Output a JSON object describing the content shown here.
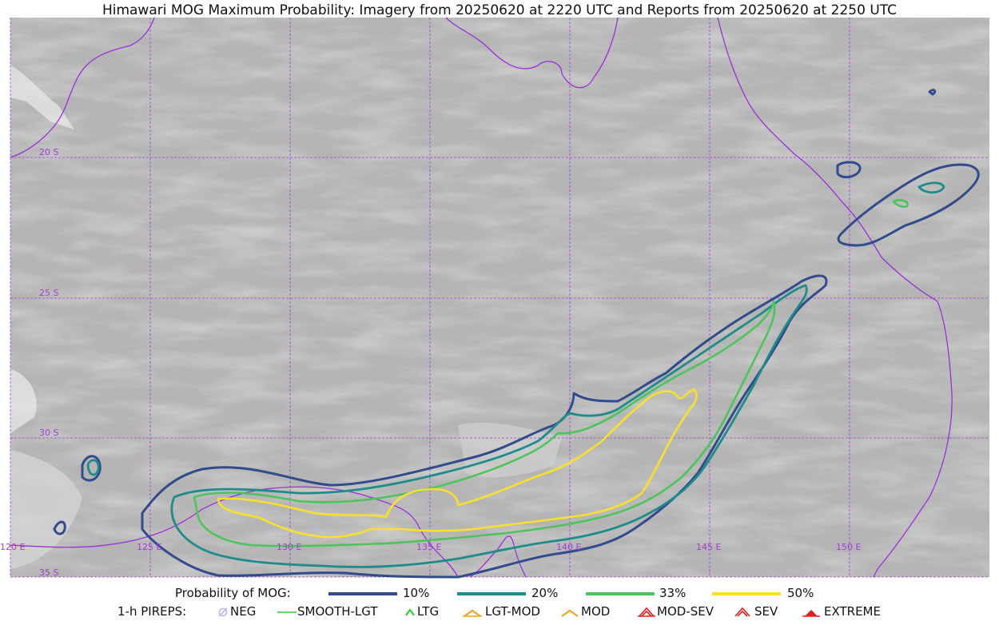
{
  "title": "Himawari MOG Maximum Probability: Imagery from 20250620 at 2220 UTC and Reports from 20250620 at 2250 UTC",
  "map": {
    "lat_labels": [
      "20 S",
      "25 S",
      "30 S",
      "35 S"
    ],
    "lon_labels": [
      "120 E",
      "125 E",
      "130 E",
      "135 E",
      "140 E",
      "145 E",
      "150 E"
    ],
    "colors": {
      "grid": "#a040d0",
      "coast": "#9a30d8",
      "p10": "#324b8c",
      "p20": "#1e8c8a",
      "p33": "#4cc45c",
      "p50": "#f9e129"
    }
  },
  "legend": {
    "prob_title": "Probability of MOG:",
    "prob_items": [
      {
        "label": "10%",
        "color": "#324b8c"
      },
      {
        "label": "20%",
        "color": "#1e8c8a"
      },
      {
        "label": "33%",
        "color": "#4cc45c"
      },
      {
        "label": "50%",
        "color": "#f9e129"
      }
    ],
    "pirep_title": "1-h PIREPS:",
    "pirep_items": [
      {
        "label": "NEG",
        "icon": "neg-icon",
        "color": "#b8b8f0"
      },
      {
        "label": "SMOOTH-LGT",
        "icon": "smooth-lgt-icon",
        "color": "#33cc33"
      },
      {
        "label": "LTG",
        "icon": "ltg-icon",
        "color": "#22cc22"
      },
      {
        "label": "LGT-MOD",
        "icon": "lgt-mod-icon",
        "color": "#f0a020"
      },
      {
        "label": "MOD",
        "icon": "mod-icon",
        "color": "#f0a020"
      },
      {
        "label": "MOD-SEV",
        "icon": "mod-sev-icon",
        "color": "#e02020"
      },
      {
        "label": "SEV",
        "icon": "sev-icon",
        "color": "#e02020"
      },
      {
        "label": "EXTREME",
        "icon": "extreme-icon",
        "color": "#e02020"
      }
    ]
  }
}
